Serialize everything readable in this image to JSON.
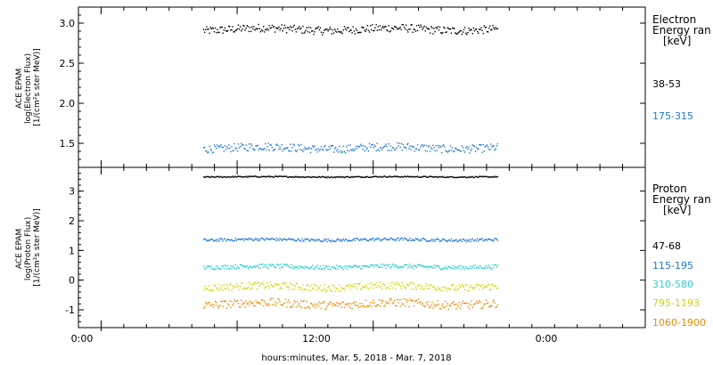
{
  "chart_data": [
    {
      "type": "scatter",
      "panel": "electron",
      "ylabel_lines": [
        "ACE EPAM",
        "log(Electron Flux)",
        "[1/(cm²s ster MeV)]"
      ],
      "ylim": [
        1.2,
        3.2
      ],
      "yticks": [
        1.5,
        2.0,
        2.5,
        3.0
      ],
      "ytick_labels": [
        "1.5",
        "2.0",
        "2.5",
        "3.0"
      ],
      "legend_title_lines": [
        "Electron",
        "Energy ran",
        "[keV]"
      ],
      "series": [
        {
          "name": "38-53",
          "color": "#000000",
          "mean": 2.93,
          "spread": 0.05,
          "t_start": 9.0,
          "t_end": 35.0
        },
        {
          "name": "175-315",
          "color": "#1f77d4",
          "mean": 1.45,
          "spread": 0.05,
          "t_start": 9.0,
          "t_end": 35.0
        }
      ]
    },
    {
      "type": "scatter",
      "panel": "proton",
      "ylabel_lines": [
        "ACE EPAM",
        "log(Proton Flux)",
        "[1/(cm²s ster MeV)]"
      ],
      "ylim": [
        -1.6,
        3.8
      ],
      "yticks": [
        -1,
        0,
        1,
        2,
        3
      ],
      "ytick_labels": [
        "-1",
        "0",
        "1",
        "2",
        "3"
      ],
      "legend_title_lines": [
        "Proton",
        "Energy ran",
        "[keV]"
      ],
      "series": [
        {
          "name": "47-68",
          "color": "#000000",
          "mean": 3.5,
          "spread": 0.02,
          "t_start": 9.0,
          "t_end": 35.0
        },
        {
          "name": "115-195",
          "color": "#1f77d4",
          "mean": 1.38,
          "spread": 0.05,
          "t_start": 9.0,
          "t_end": 35.0
        },
        {
          "name": "310-580",
          "color": "#22d0d0",
          "mean": 0.47,
          "spread": 0.07,
          "t_start": 9.0,
          "t_end": 35.0
        },
        {
          "name": "795-1193",
          "color": "#d4d400",
          "mean": -0.2,
          "spread": 0.12,
          "t_start": 9.0,
          "t_end": 35.0
        },
        {
          "name": "1060-1900",
          "color": "#ee8800",
          "mean": -0.78,
          "spread": 0.14,
          "t_start": 9.0,
          "t_end": 35.0
        }
      ]
    }
  ],
  "x_axis": {
    "xlim_hours": [
      -2,
      48
    ],
    "major_ticks_hours": [
      0,
      12,
      24
    ],
    "major_tick_labels": [
      "0:00",
      "12:00",
      "0:00"
    ],
    "minor_tick_step_hours": 2,
    "label": "hours:minutes, Mar.  5, 2018 - Mar.  7, 2018"
  }
}
